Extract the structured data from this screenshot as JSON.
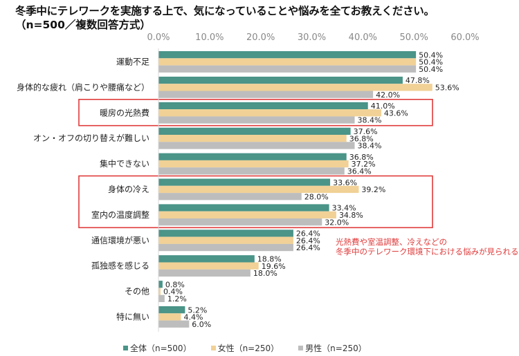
{
  "title_line1": "冬季中にテレワークを実施する上で、気になっていることや悩みを全てお教えください。",
  "title_line2": "（n=500／複数回答方式）",
  "annotation": {
    "line1": "光熱費や室温調整、冷えなどの",
    "line2": "冬季中のテレワーク環境下における悩みが見られる"
  },
  "highlight_groups": [
    [
      "暖房の光熱費"
    ],
    [
      "身体の冷え",
      "室内の温度調整"
    ]
  ],
  "chart_data": {
    "type": "bar",
    "orientation": "horizontal",
    "title": "冬季中にテレワークを実施する上で、気になっていることや悩みを全てお教えください。（n=500／複数回答方式）",
    "xlabel": "",
    "ylabel": "",
    "xlim": [
      0,
      60
    ],
    "xticks": [
      "0.0%",
      "10.0%",
      "20.0%",
      "30.0%",
      "40.0%",
      "50.0%",
      "60.0%"
    ],
    "xtick_values": [
      0,
      10,
      20,
      30,
      40,
      50,
      60
    ],
    "grid": false,
    "legend_position": "bottom",
    "categories": [
      "運動不足",
      "身体的な疲れ（肩こりや腰痛など）",
      "暖房の光熱費",
      "オン・オフの切り替えが難しい",
      "集中できない",
      "身体の冷え",
      "室内の温度調整",
      "通信環境が悪い",
      "孤独感を感じる",
      "その他",
      "特に無い"
    ],
    "series": [
      {
        "name": "全体（n=500）",
        "color": "#4a9488",
        "values": [
          50.4,
          47.8,
          41.0,
          37.6,
          36.8,
          33.6,
          33.4,
          26.4,
          18.8,
          0.8,
          5.2
        ]
      },
      {
        "name": "女性（n=250）",
        "color": "#f1d196",
        "values": [
          50.4,
          53.6,
          43.6,
          36.8,
          37.2,
          39.2,
          34.8,
          26.4,
          19.6,
          0.4,
          4.4
        ]
      },
      {
        "name": "男性（n=250）",
        "color": "#bdbdbd",
        "values": [
          50.4,
          42.0,
          38.4,
          38.4,
          36.4,
          28.0,
          32.0,
          26.4,
          18.0,
          1.2,
          6.0
        ]
      }
    ],
    "value_format": "{v}%",
    "highlight_color": "#e03a3a"
  }
}
